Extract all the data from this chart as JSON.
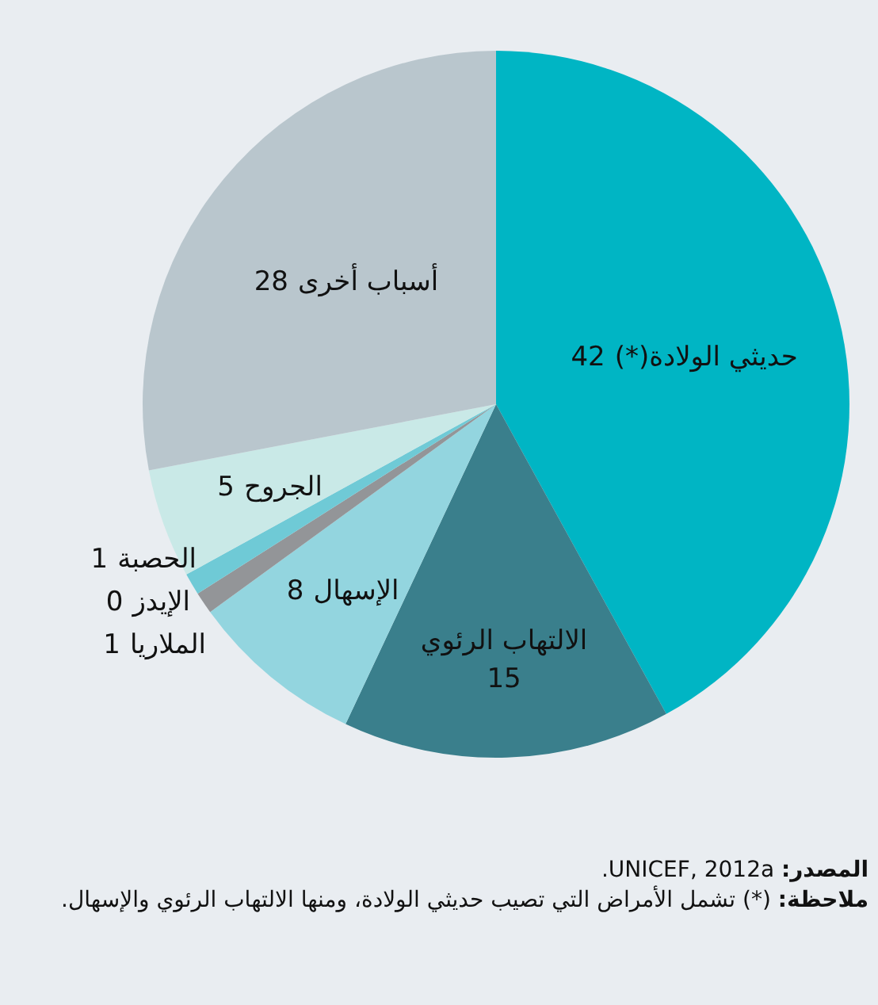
{
  "chart_data": {
    "type": "pie",
    "categories": [
      "حديثي الولادة(*)",
      "الالتهاب الرئوي",
      "الإسهال",
      "الملاريا",
      "الإيدز",
      "الحصبة",
      "الجروح",
      "أسباب أخرى"
    ],
    "values": [
      42,
      15,
      8,
      1,
      0,
      1,
      5,
      28
    ],
    "colors": [
      "#00b5c4",
      "#3a7f8c",
      "#93d5df",
      "#939598",
      "#00777a",
      "#6fcad6",
      "#c9e9e7",
      "#b9c6cd"
    ],
    "value_labels": [
      "42",
      "15",
      "8",
      "1",
      "0",
      "1",
      "5",
      "28"
    ],
    "annotations": [
      "المصدر: UNICEF, 2012a.",
      "ملاحظة: (*) تشمل الأمراض التي تصيب حديثي الولادة، ومنها الالتهاب الرئوي والإسهال."
    ]
  }
}
